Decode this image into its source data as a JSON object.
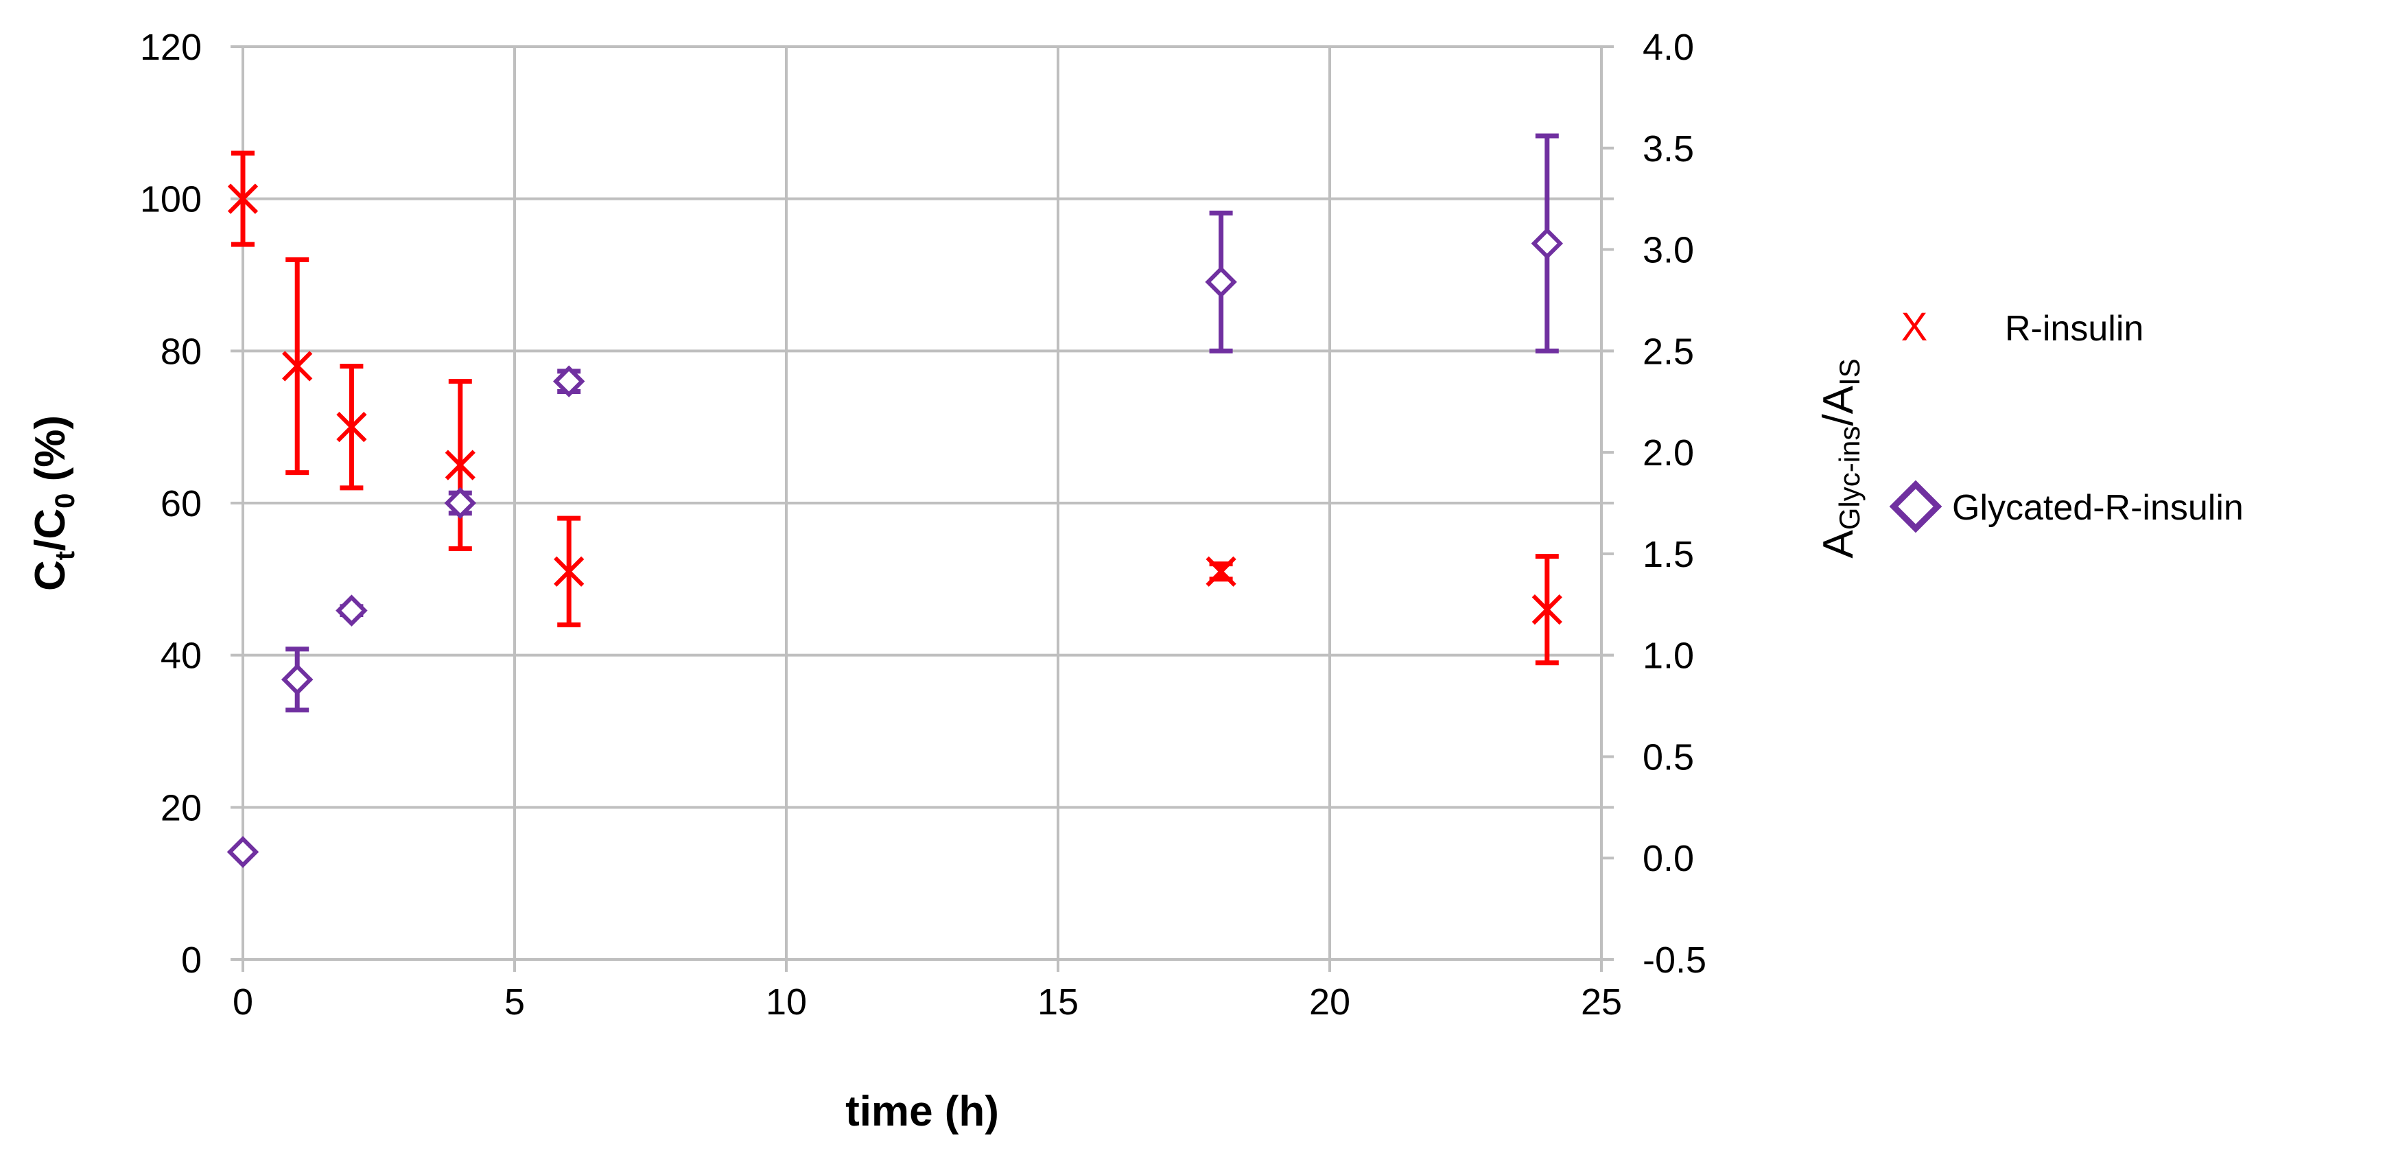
{
  "chart_data": {
    "type": "scatter",
    "title": "",
    "colors": {
      "r_insulin": "#ff0000",
      "glycated": "#7030a0",
      "grid": "#bfbfbf"
    },
    "xlabel": "time (h)",
    "ylabel": {
      "main1": "C",
      "sub1": "t",
      "main2": "/C",
      "sub2": "0",
      "rest": " (%)"
    },
    "y2label": {
      "a1": "A",
      "s1": "Glyc-ins",
      "a2": "/A",
      "s2": "IS"
    },
    "xlim": [
      0,
      25
    ],
    "ylim": [
      0,
      120
    ],
    "y2lim": [
      -0.5,
      4.0
    ],
    "xticks": [
      "0",
      "5",
      "10",
      "15",
      "20",
      "25"
    ],
    "yticks": [
      "0",
      "20",
      "40",
      "60",
      "80",
      "100",
      "120"
    ],
    "y2ticks": [
      "-0.5",
      "0.0",
      "0.5",
      "1.0",
      "1.5",
      "2.0",
      "2.5",
      "3.0",
      "3.5",
      "4.0"
    ],
    "grid": true,
    "legend_position": "right",
    "series": [
      {
        "name": "R-insulin",
        "marker": "x",
        "axis": "left",
        "legend_symbol": "X",
        "points": [
          {
            "x": 0,
            "y": 100,
            "err": 6
          },
          {
            "x": 1,
            "y": 78,
            "err": 14
          },
          {
            "x": 2,
            "y": 70,
            "err": 8
          },
          {
            "x": 4,
            "y": 65,
            "err": 11
          },
          {
            "x": 6,
            "y": 51,
            "err": 7
          },
          {
            "x": 18,
            "y": 51,
            "err": 1
          },
          {
            "x": 24,
            "y": 46,
            "err": 7
          }
        ]
      },
      {
        "name": "Glycated-R-insulin",
        "marker": "diamond",
        "axis": "right",
        "points": [
          {
            "x": 0,
            "y": 0.03,
            "err": 0
          },
          {
            "x": 1,
            "y": 0.88,
            "err": 0.15
          },
          {
            "x": 2,
            "y": 1.22,
            "err": 0.02
          },
          {
            "x": 4,
            "y": 1.75,
            "err": 0.05
          },
          {
            "x": 6,
            "y": 2.35,
            "err": 0.05
          },
          {
            "x": 18,
            "y": 2.84,
            "err": 0.34
          },
          {
            "x": 24,
            "y": 3.03,
            "err": 0.53
          }
        ]
      }
    ]
  }
}
